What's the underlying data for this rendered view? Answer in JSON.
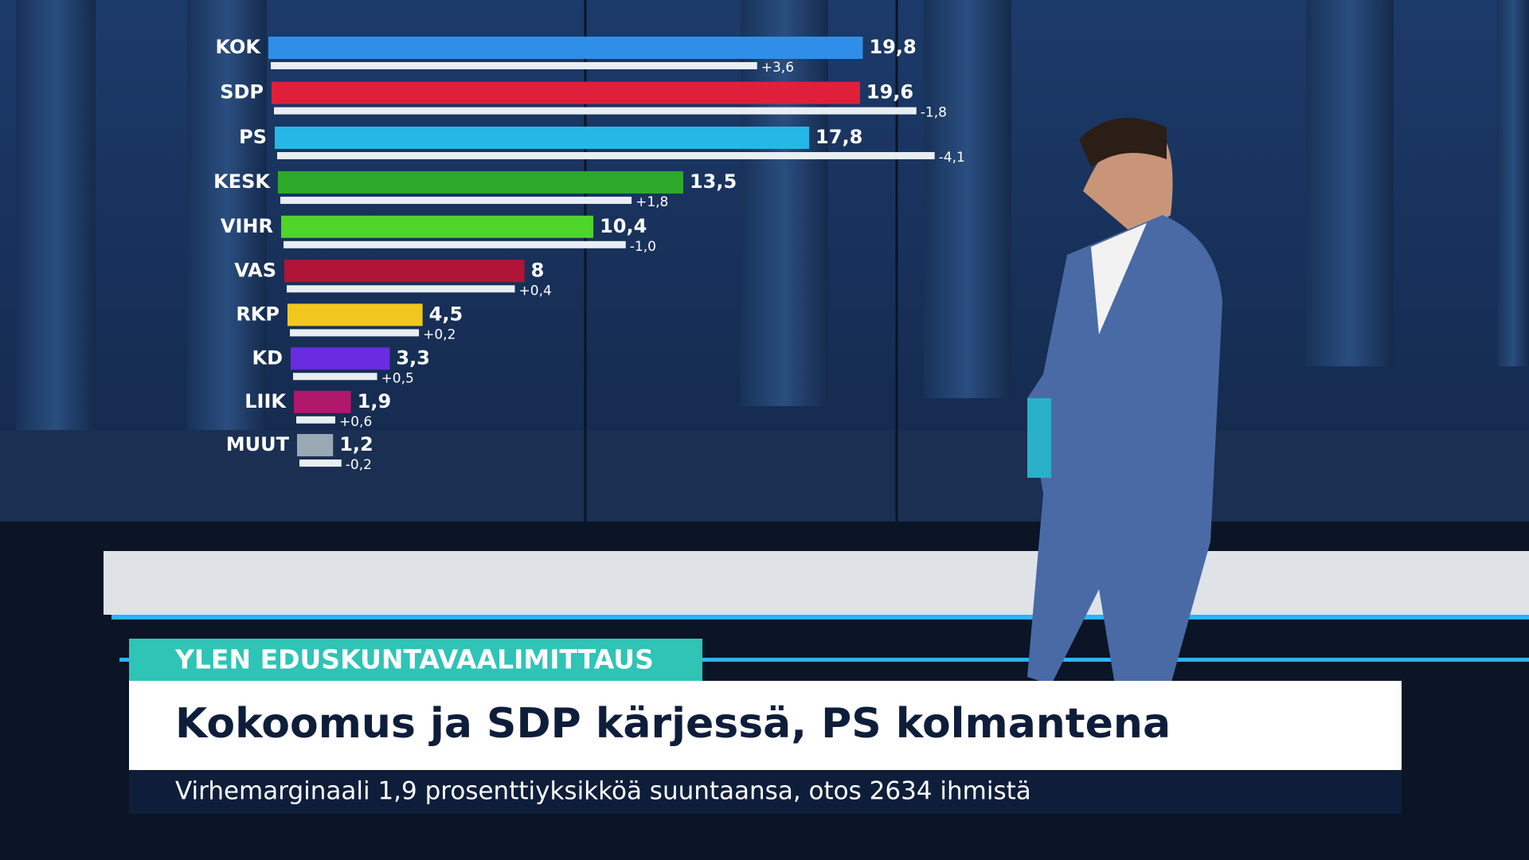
{
  "chart_data": {
    "type": "bar",
    "categories": [
      "KOK",
      "SDP",
      "PS",
      "KESK",
      "VIHR",
      "VAS",
      "RKP",
      "KD",
      "LIIK",
      "MUUT"
    ],
    "values": [
      19.8,
      19.6,
      17.8,
      13.5,
      10.4,
      8,
      4.5,
      3.3,
      1.9,
      1.2
    ],
    "value_labels": [
      "19,8",
      "19,6",
      "17,8",
      "13,5",
      "10,4",
      "8",
      "4,5",
      "3,3",
      "1,9",
      "1,2"
    ],
    "colors": [
      "#2f8fe8",
      "#e0203a",
      "#25b8e6",
      "#2ea82a",
      "#4fd42a",
      "#b01436",
      "#f0c81e",
      "#6a2ce0",
      "#b0186c",
      "#9aa8b4"
    ],
    "changes": [
      3.6,
      -1.8,
      -4.1,
      1.8,
      -1.0,
      0.4,
      0.2,
      0.5,
      0.6,
      -0.2
    ],
    "change_labels": [
      "+3,6",
      "-1,8",
      "-4,1",
      "+1,8",
      "-1,0",
      "+0,4",
      "+0,2",
      "+0,5",
      "+0,6",
      "-0,2"
    ]
  },
  "lower_third": {
    "label": "YLEN EDUSKUNTAVAALIMITTAUS",
    "headline": "Kokoomus ja SDP kärjessä, PS kolmantena",
    "subline": "Virhemarginaali 1,9 prosenttiyksikköä suuntaansa, otos 2634 ihmistä"
  }
}
